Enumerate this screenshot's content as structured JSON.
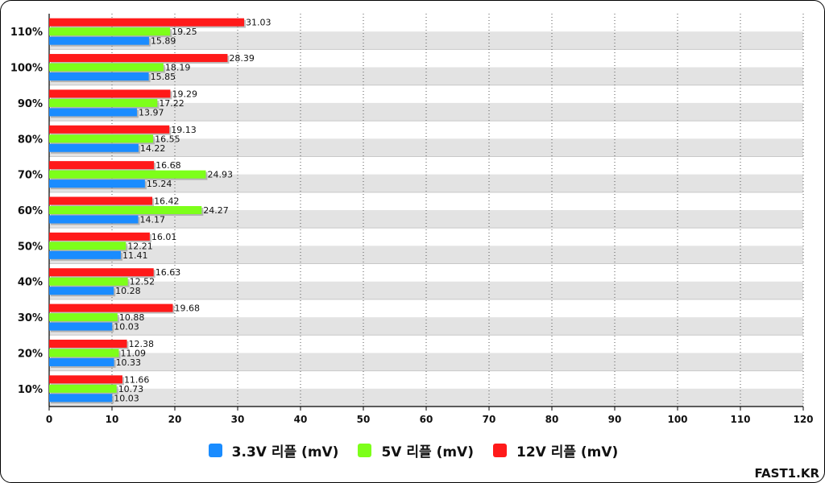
{
  "chart_data": {
    "type": "bar",
    "orientation": "horizontal",
    "categories": [
      "110%",
      "100%",
      "90%",
      "80%",
      "70%",
      "60%",
      "50%",
      "40%",
      "30%",
      "20%",
      "10%"
    ],
    "series": [
      {
        "name": "12V 리플 (mV)",
        "color": "#ff1a1a",
        "values": [
          31.03,
          28.39,
          19.29,
          19.13,
          16.68,
          16.42,
          16.01,
          16.63,
          19.68,
          12.38,
          11.66
        ]
      },
      {
        "name": "5V 리플 (mV)",
        "color": "#7dff1a",
        "values": [
          19.25,
          18.19,
          17.22,
          16.55,
          24.93,
          24.27,
          12.21,
          12.52,
          10.88,
          11.09,
          10.73
        ]
      },
      {
        "name": "3.3V 리플 (mV)",
        "color": "#1a8cff",
        "values": [
          15.89,
          15.85,
          13.97,
          14.22,
          15.24,
          14.17,
          11.41,
          10.28,
          10.03,
          10.33,
          10.03
        ]
      }
    ],
    "xlim": [
      0,
      120
    ],
    "x_ticks": [
      0,
      10,
      20,
      30,
      40,
      50,
      60,
      70,
      80,
      90,
      100,
      110,
      120
    ],
    "grid": "vertical dotted",
    "legend_position": "bottom",
    "legend_order": [
      "3.3V 리플 (mV)",
      "5V 리플 (mV)",
      "12V 리플 (mV)"
    ]
  },
  "brand": "FAST1.KR"
}
